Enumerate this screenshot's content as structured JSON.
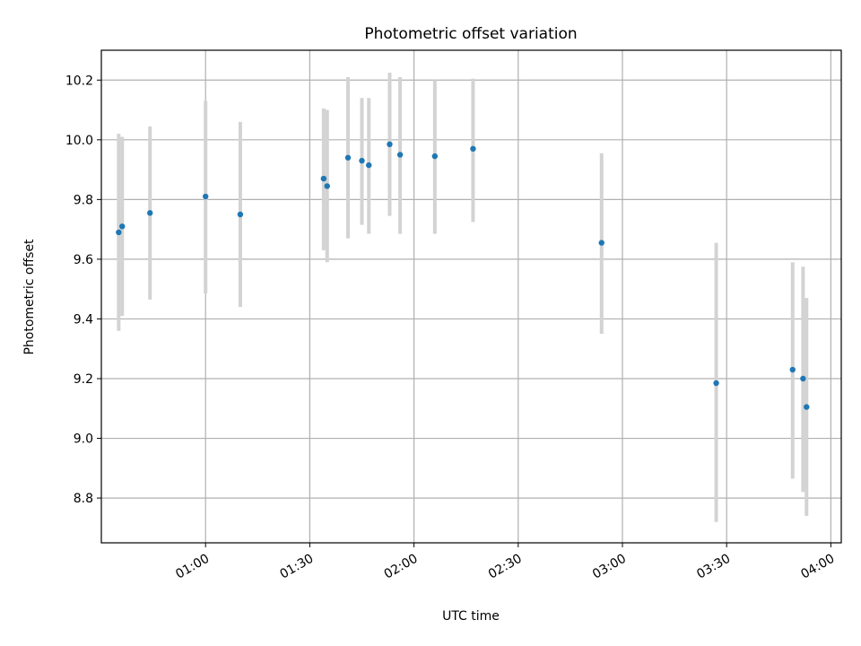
{
  "chart_data": {
    "type": "scatter",
    "title": "Photometric offset variation",
    "xlabel": "UTC time",
    "ylabel": "Photometric offset",
    "xlim": [
      "00:30",
      "04:03"
    ],
    "ylim": [
      8.65,
      10.3
    ],
    "xticks": [
      "01:00",
      "01:30",
      "02:00",
      "02:30",
      "03:00",
      "03:30",
      "04:00"
    ],
    "yticks": [
      8.8,
      9.0,
      9.2,
      9.4,
      9.6,
      9.8,
      10.0,
      10.2
    ],
    "grid": true,
    "marker_color": "#1f77b4",
    "errorbar_color": "#d3d3d3",
    "points": [
      {
        "t": "00:35",
        "y": 9.69,
        "lo": 9.36,
        "hi": 10.02
      },
      {
        "t": "00:36",
        "y": 9.71,
        "lo": 9.41,
        "hi": 10.01
      },
      {
        "t": "00:44",
        "y": 9.755,
        "lo": 9.465,
        "hi": 10.045
      },
      {
        "t": "01:00",
        "y": 9.81,
        "lo": 9.485,
        "hi": 10.13
      },
      {
        "t": "01:10",
        "y": 9.75,
        "lo": 9.44,
        "hi": 10.06
      },
      {
        "t": "01:34",
        "y": 9.87,
        "lo": 9.63,
        "hi": 10.105
      },
      {
        "t": "01:35",
        "y": 9.845,
        "lo": 9.59,
        "hi": 10.1
      },
      {
        "t": "01:41",
        "y": 9.94,
        "lo": 9.67,
        "hi": 10.21
      },
      {
        "t": "01:45",
        "y": 9.93,
        "lo": 9.715,
        "hi": 10.14
      },
      {
        "t": "01:47",
        "y": 9.915,
        "lo": 9.685,
        "hi": 10.14
      },
      {
        "t": "01:53",
        "y": 9.985,
        "lo": 9.745,
        "hi": 10.225
      },
      {
        "t": "01:56",
        "y": 9.95,
        "lo": 9.685,
        "hi": 10.21
      },
      {
        "t": "02:06",
        "y": 9.945,
        "lo": 9.685,
        "hi": 10.2
      },
      {
        "t": "02:17",
        "y": 9.97,
        "lo": 9.725,
        "hi": 10.205
      },
      {
        "t": "02:54",
        "y": 9.655,
        "lo": 9.35,
        "hi": 9.955
      },
      {
        "t": "03:27",
        "y": 9.185,
        "lo": 8.72,
        "hi": 9.655
      },
      {
        "t": "03:49",
        "y": 9.23,
        "lo": 8.865,
        "hi": 9.59
      },
      {
        "t": "03:52",
        "y": 9.2,
        "lo": 8.82,
        "hi": 9.575
      },
      {
        "t": "03:53",
        "y": 9.105,
        "lo": 8.74,
        "hi": 9.47
      }
    ]
  }
}
